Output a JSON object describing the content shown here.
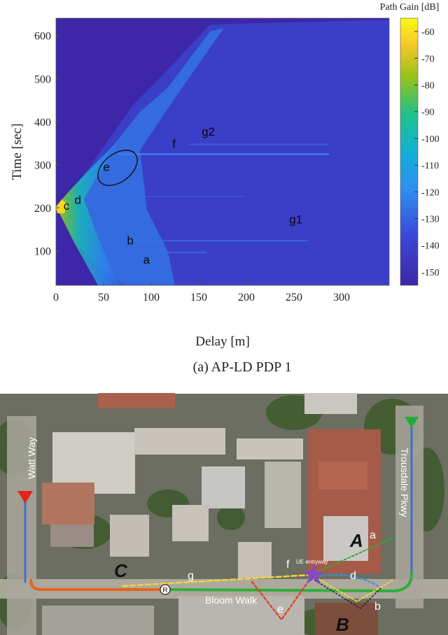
{
  "chart_data": {
    "type": "heatmap",
    "xlabel": "Delay [m]",
    "ylabel": "Time [sec]",
    "xlim": [
      0,
      350
    ],
    "ylim": [
      20,
      640
    ],
    "x_ticks": [
      0,
      50,
      100,
      150,
      200,
      250,
      300
    ],
    "y_ticks": [
      100,
      200,
      300,
      400,
      500,
      600
    ],
    "colorbar": {
      "title": "Path Gain [dB]",
      "range": [
        -155,
        -55
      ],
      "ticks": [
        -60,
        -70,
        -80,
        -90,
        -100,
        -110,
        -120,
        -130,
        -140,
        -150
      ],
      "colors": [
        "#3e26a8",
        "#2f65f4",
        "#12b0d6",
        "#21c08a",
        "#96c31b",
        "#f6d529",
        "#f9fb15"
      ]
    },
    "background_color": "#3e26a8",
    "annotations": [
      {
        "text": "a",
        "x": 95,
        "y": 70
      },
      {
        "text": "b",
        "x": 78,
        "y": 115
      },
      {
        "text": "c",
        "x": 11,
        "y": 195
      },
      {
        "text": "d",
        "x": 23,
        "y": 209
      },
      {
        "text": "e",
        "x": 53,
        "y": 285
      },
      {
        "text": "f",
        "x": 124,
        "y": 340
      },
      {
        "text": "g1",
        "x": 252,
        "y": 164
      },
      {
        "text": "g2",
        "x": 160,
        "y": 367
      }
    ],
    "caption": "(a) AP-LD PDP 1"
  },
  "map": {
    "street_labels": [
      "Watt Way",
      "Trousdale Pkwy",
      "Bloom Walk"
    ],
    "route_labels": [
      "A",
      "B",
      "C"
    ],
    "path_labels": [
      "a",
      "b",
      "d",
      "e",
      "f",
      "g"
    ],
    "ue_label": "UE entryway",
    "roundabout_label": "R",
    "route_colors": {
      "blue": "#3d6fcf",
      "orange": "#e3661d",
      "green": "#2fae3a",
      "yellow": "#f3d43a",
      "red": "#e03b2b",
      "purple": "#8a47c4"
    }
  }
}
